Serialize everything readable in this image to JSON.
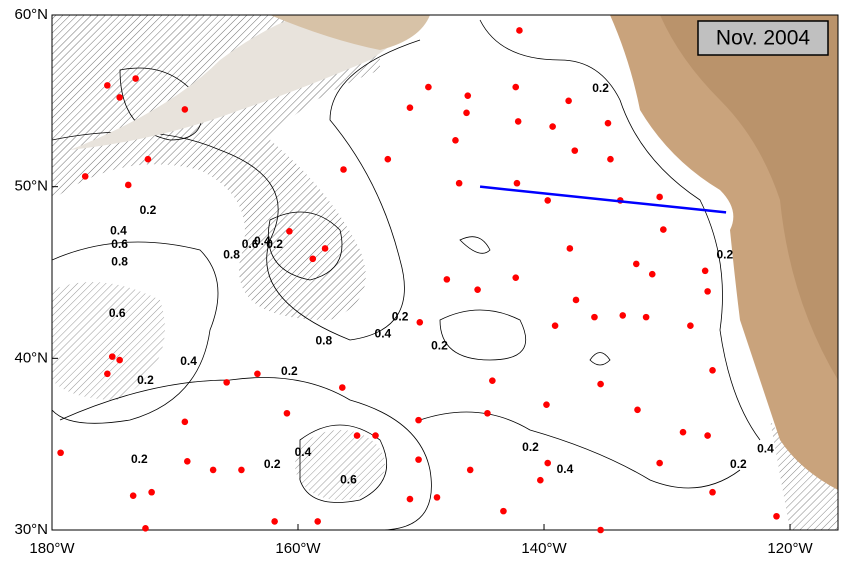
{
  "map": {
    "type": "map",
    "date_label": "Nov. 2004",
    "lon_range": [
      -180,
      -116.1
    ],
    "lat_range": [
      30,
      60
    ],
    "lon_ticks": [
      {
        "value": -180,
        "label": "180°W"
      },
      {
        "value": -160,
        "label": "160°W"
      },
      {
        "value": -140,
        "label": "140°W"
      },
      {
        "value": -120,
        "label": "120°W"
      }
    ],
    "lat_ticks": [
      {
        "value": 30,
        "label": "30°N"
      },
      {
        "value": 40,
        "label": "40°N"
      },
      {
        "value": 50,
        "label": "50°N"
      },
      {
        "value": 60,
        "label": "60°N"
      }
    ],
    "point_color": "#ff0000",
    "points": {
      "lon": [
        -175.5,
        -174.5,
        -173.2,
        -169.2,
        -172.2,
        -173.8,
        -177.3,
        -160.7,
        -157.8,
        -158.8,
        -156.3,
        -152.7,
        -150.9,
        -149.4,
        -146.2,
        -147.2,
        -146.9,
        -142.2,
        -142.1,
        -139.3,
        -138.0,
        -134.8,
        -137.5,
        -134.6,
        -139.7,
        -137.9,
        -133.8,
        -130.6,
        -130.3,
        -132.5,
        -131.2,
        -126.9,
        -126.7,
        -150.1,
        -147.9,
        -145.4,
        -142.3,
        -139.1,
        -137.4,
        -135.9,
        -133.6,
        -131.7,
        -128.1,
        -126.3,
        -135.4,
        -132.4,
        -139.8,
        -144.2,
        -144.6,
        -150.2,
        -150.2,
        -148.7,
        -150.9,
        -143.3,
        -140.3,
        -135.4,
        -130.6,
        -126.3,
        -126.7,
        -128.7,
        -139.7,
        -146.0,
        -155.2,
        -156.4,
        -160.9,
        -165.8,
        -163.3,
        -166.9,
        -164.6,
        -169.2,
        -169.0,
        -171.9,
        -173.4,
        -172.4,
        -161.9,
        -158.4,
        -153.7,
        -174.5,
        -175.1,
        -175.5,
        -179.3,
        -121.1,
        -142.0,
        -146.3,
        -142.3
      ],
      "lat": [
        55.9,
        55.2,
        56.3,
        54.5,
        51.6,
        50.1,
        50.6,
        47.4,
        46.4,
        45.8,
        51.0,
        51.6,
        54.6,
        55.8,
        55.3,
        52.7,
        50.2,
        50.2,
        53.8,
        53.5,
        55.0,
        53.7,
        52.1,
        51.6,
        49.2,
        46.4,
        49.2,
        49.4,
        47.5,
        45.5,
        44.9,
        45.1,
        43.9,
        42.1,
        44.6,
        44.0,
        44.7,
        41.9,
        43.4,
        42.4,
        42.5,
        42.4,
        41.9,
        39.3,
        38.5,
        37.0,
        37.3,
        38.7,
        36.8,
        36.4,
        34.1,
        31.9,
        31.8,
        31.1,
        32.9,
        30.0,
        33.9,
        32.2,
        35.5,
        35.7,
        33.9,
        33.5,
        35.5,
        38.3,
        36.8,
        38.6,
        39.1,
        33.5,
        33.5,
        36.3,
        34.0,
        32.2,
        32.0,
        30.1,
        30.5,
        30.5,
        35.5,
        39.9,
        40.1,
        39.1,
        34.5,
        30.8,
        59.1,
        54.3,
        55.8
      ]
    },
    "section": {
      "color": "#0000ff",
      "lon": [
        -145.2,
        -125.2
      ],
      "lat": [
        50.0,
        48.5
      ]
    },
    "contour_labels": [
      {
        "text": "0.2",
        "lon": -135.4,
        "lat": 55.7
      },
      {
        "text": "0.2",
        "lon": -172.2,
        "lat": 48.6
      },
      {
        "text": "0.4",
        "lon": -174.6,
        "lat": 47.4
      },
      {
        "text": "0.6",
        "lon": -174.5,
        "lat": 46.6
      },
      {
        "text": "0.8",
        "lon": -174.5,
        "lat": 45.6
      },
      {
        "text": "0.6",
        "lon": -174.7,
        "lat": 42.6
      },
      {
        "text": "0.4",
        "lon": -168.9,
        "lat": 39.8
      },
      {
        "text": "0.2",
        "lon": -172.4,
        "lat": 38.7
      },
      {
        "text": "0.2",
        "lon": -172.9,
        "lat": 34.1
      },
      {
        "text": "0.8",
        "lon": -157.9,
        "lat": 41.0
      },
      {
        "text": "0.4",
        "lon": -153.1,
        "lat": 41.4
      },
      {
        "text": "0.2",
        "lon": -151.7,
        "lat": 42.4
      },
      {
        "text": "0.2",
        "lon": -148.5,
        "lat": 40.7
      },
      {
        "text": "0.2",
        "lon": -160.7,
        "lat": 39.2
      },
      {
        "text": "0.2",
        "lon": -162.1,
        "lat": 33.8
      },
      {
        "text": "0.4",
        "lon": -159.6,
        "lat": 34.5
      },
      {
        "text": "0.6",
        "lon": -155.9,
        "lat": 32.9
      },
      {
        "text": "0.2",
        "lon": -141.1,
        "lat": 34.8
      },
      {
        "text": "0.4",
        "lon": -138.3,
        "lat": 33.5
      },
      {
        "text": "0.2",
        "lon": -124.2,
        "lat": 33.8
      },
      {
        "text": "0.4",
        "lon": -122.0,
        "lat": 34.7
      },
      {
        "text": "0.2",
        "lon": -125.3,
        "lat": 46.0
      },
      {
        "text": "0.8",
        "lon": -165.4,
        "lat": 46.0
      },
      {
        "text": "0.6",
        "lon": -163.9,
        "lat": 46.6
      },
      {
        "text": "0.4",
        "lon": -162.9,
        "lat": 46.8
      },
      {
        "text": "0.2",
        "lon": -161.9,
        "lat": 46.6
      }
    ]
  }
}
